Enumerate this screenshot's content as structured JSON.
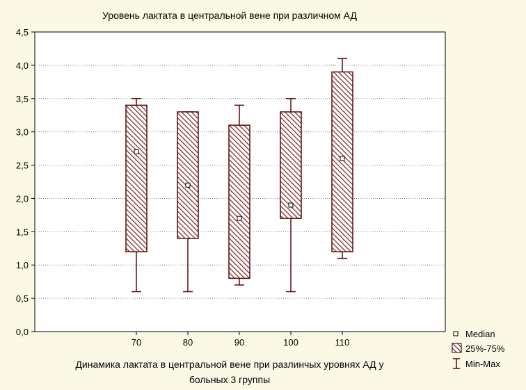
{
  "chart_data": {
    "type": "boxplot",
    "title": "Уровень лактата в центральной вене при различном АД",
    "xlabel": "Динамика лактата в центральной вене при разлинчых уровнях АД у больных 3 группы",
    "xlabel_lines": [
      "Динамика лактата в центральной вене при разлинчых уровнях АД у",
      "больных 3 группы"
    ],
    "ylabel": "",
    "ylim": [
      0,
      4.5
    ],
    "yticks": [
      "0,0",
      "0,5",
      "1,0",
      "1,5",
      "2,0",
      "2,5",
      "3,0",
      "3,5",
      "4,0",
      "4,5"
    ],
    "categories": [
      "70",
      "80",
      "90",
      "100",
      "110"
    ],
    "series": [
      {
        "category": "70",
        "min": 0.6,
        "q1": 1.2,
        "median": 2.7,
        "q3": 3.4,
        "max": 3.5
      },
      {
        "category": "80",
        "min": 0.6,
        "q1": 1.4,
        "median": 2.2,
        "q3": 3.3,
        "max": 3.3
      },
      {
        "category": "90",
        "min": 0.7,
        "q1": 0.8,
        "median": 1.7,
        "q3": 3.1,
        "max": 3.4
      },
      {
        "category": "100",
        "min": 0.6,
        "q1": 1.7,
        "median": 1.9,
        "q3": 3.3,
        "max": 3.5
      },
      {
        "category": "110",
        "min": 1.1,
        "q1": 1.2,
        "median": 2.6,
        "q3": 3.9,
        "max": 4.1
      }
    ],
    "legend": {
      "position": "bottom-right",
      "items": [
        {
          "key": "median",
          "label": "Median"
        },
        {
          "key": "box",
          "label": "25%-75%"
        },
        {
          "key": "whisker",
          "label": "Min-Max"
        }
      ]
    },
    "grid": true,
    "colors": {
      "box_stroke": "#5a0a0a",
      "box_hatch": "#7a1e1e",
      "background": "#fbf8e5",
      "grid": "#808080"
    }
  }
}
